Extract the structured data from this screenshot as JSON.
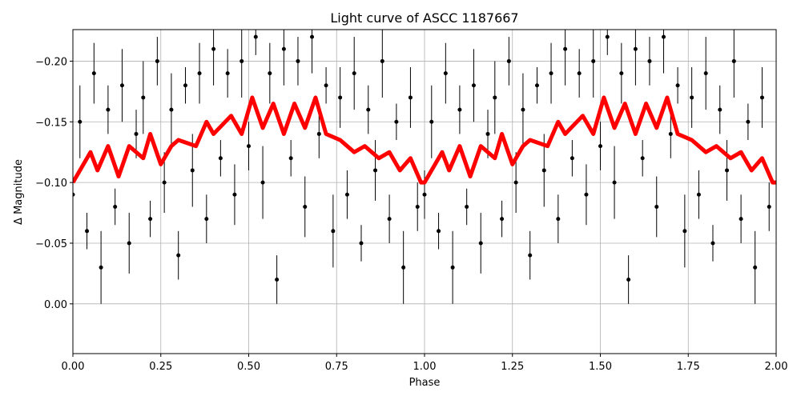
{
  "chart_data": {
    "type": "scatter",
    "title": "Light curve of ASCC 1187667",
    "xlabel": "Phase",
    "ylabel": "Δ Magnitude",
    "xlim": [
      0,
      2
    ],
    "ylim": [
      0.041,
      -0.226
    ],
    "xticks": [
      {
        "value": 0,
        "label": "0.00"
      },
      {
        "value": 0.25,
        "label": "0.25"
      },
      {
        "value": 0.5,
        "label": "0.50"
      },
      {
        "value": 0.75,
        "label": "0.75"
      },
      {
        "value": 1,
        "label": "1.00"
      },
      {
        "value": 1.25,
        "label": "1.25"
      },
      {
        "value": 1.5,
        "label": "1.50"
      },
      {
        "value": 1.75,
        "label": "1.75"
      },
      {
        "value": 2,
        "label": "2.00"
      }
    ],
    "yticks": [
      {
        "value": 0,
        "label": "0.00"
      },
      {
        "value": -0.05,
        "label": "−0.05"
      },
      {
        "value": -0.1,
        "label": "−0.10"
      },
      {
        "value": -0.15,
        "label": "−0.15"
      },
      {
        "value": -0.2,
        "label": "−0.20"
      }
    ],
    "grid": true,
    "series": [
      {
        "type": "errorbar",
        "color": "#000000",
        "x": [
          0,
          0.02,
          0.04,
          0.06,
          0.08,
          0.1,
          0.12,
          0.14,
          0.16,
          0.18,
          0.2,
          0.22,
          0.24,
          0.26,
          0.28,
          0.3,
          0.32,
          0.34,
          0.36,
          0.38,
          0.4,
          0.42,
          0.44,
          0.46,
          0.48,
          0.5,
          0.52,
          0.54,
          0.56,
          0.58,
          0.6,
          0.62,
          0.64,
          0.66,
          0.68,
          0.7,
          0.72,
          0.74,
          0.76,
          0.78,
          0.8,
          0.82,
          0.84,
          0.86,
          0.88,
          0.9,
          0.92,
          0.94,
          0.96,
          0.98,
          1,
          1.02,
          1.04,
          1.06,
          1.08,
          1.1,
          1.12,
          1.14,
          1.16,
          1.18,
          1.2,
          1.22,
          1.24,
          1.26,
          1.28,
          1.3,
          1.32,
          1.34,
          1.36,
          1.38,
          1.4,
          1.42,
          1.44,
          1.46,
          1.48,
          1.5,
          1.52,
          1.54,
          1.56,
          1.58,
          1.6,
          1.62,
          1.64,
          1.66,
          1.68,
          1.7,
          1.72,
          1.74,
          1.76,
          1.78,
          1.8,
          1.82,
          1.84,
          1.86,
          1.88,
          1.9,
          1.92,
          1.94,
          1.96,
          1.98
        ],
        "values": [
          -0.09,
          -0.15,
          -0.06,
          -0.19,
          -0.03,
          -0.16,
          -0.08,
          -0.18,
          -0.05,
          -0.14,
          -0.17,
          -0.07,
          -0.2,
          -0.1,
          -0.16,
          -0.04,
          -0.18,
          -0.11,
          -0.19,
          -0.07,
          -0.21,
          -0.12,
          -0.19,
          -0.09,
          -0.2,
          -0.13,
          -0.22,
          -0.1,
          -0.19,
          -0.02,
          -0.21,
          -0.12,
          -0.2,
          -0.08,
          -0.22,
          -0.14,
          -0.18,
          -0.06,
          -0.17,
          -0.09,
          -0.19,
          -0.05,
          -0.16,
          -0.11,
          -0.2,
          -0.07,
          -0.15,
          -0.03,
          -0.17,
          -0.08,
          -0.09,
          -0.15,
          -0.06,
          -0.19,
          -0.03,
          -0.16,
          -0.08,
          -0.18,
          -0.05,
          -0.14,
          -0.17,
          -0.07,
          -0.2,
          -0.1,
          -0.16,
          -0.04,
          -0.18,
          -0.11,
          -0.19,
          -0.07,
          -0.21,
          -0.12,
          -0.19,
          -0.09,
          -0.2,
          -0.13,
          -0.22,
          -0.1,
          -0.19,
          -0.02,
          -0.21,
          -0.12,
          -0.2,
          -0.08,
          -0.22,
          -0.14,
          -0.18,
          -0.06,
          -0.17,
          -0.09,
          -0.19,
          -0.05,
          -0.16,
          -0.11,
          -0.2,
          -0.07,
          -0.15,
          -0.03,
          -0.17,
          -0.08
        ],
        "errors": [
          0.02,
          0.03,
          0.015,
          0.025,
          0.03,
          0.02,
          0.015,
          0.03,
          0.025,
          0.02,
          0.03,
          0.015,
          0.02,
          0.025,
          0.03,
          0.02,
          0.015,
          0.03,
          0.025,
          0.02,
          0.03,
          0.015,
          0.02,
          0.025,
          0.03,
          0.02,
          0.015,
          0.03,
          0.025,
          0.02,
          0.03,
          0.015,
          0.02,
          0.025,
          0.03,
          0.02,
          0.015,
          0.03,
          0.025,
          0.02,
          0.03,
          0.015,
          0.02,
          0.025,
          0.03,
          0.02,
          0.015,
          0.03,
          0.025,
          0.02,
          0.02,
          0.03,
          0.015,
          0.025,
          0.03,
          0.02,
          0.015,
          0.03,
          0.025,
          0.02,
          0.03,
          0.015,
          0.02,
          0.025,
          0.03,
          0.02,
          0.015,
          0.03,
          0.025,
          0.02,
          0.03,
          0.015,
          0.02,
          0.025,
          0.03,
          0.02,
          0.015,
          0.03,
          0.025,
          0.02,
          0.03,
          0.015,
          0.02,
          0.025,
          0.03,
          0.02,
          0.015,
          0.03,
          0.025,
          0.02,
          0.03,
          0.015,
          0.02,
          0.025,
          0.03,
          0.02,
          0.015,
          0.03,
          0.025,
          0.02
        ]
      },
      {
        "type": "line",
        "color": "#ff0000",
        "x": [
          0,
          0.05,
          0.07,
          0.1,
          0.13,
          0.16,
          0.2,
          0.22,
          0.25,
          0.28,
          0.3,
          0.35,
          0.38,
          0.4,
          0.45,
          0.48,
          0.51,
          0.54,
          0.57,
          0.6,
          0.63,
          0.66,
          0.69,
          0.72,
          0.76,
          0.8,
          0.83,
          0.87,
          0.9,
          0.93,
          0.96,
          0.99,
          1,
          1.05,
          1.07,
          1.1,
          1.13,
          1.16,
          1.2,
          1.22,
          1.25,
          1.28,
          1.3,
          1.35,
          1.38,
          1.4,
          1.45,
          1.48,
          1.51,
          1.54,
          1.57,
          1.6,
          1.63,
          1.66,
          1.69,
          1.72,
          1.76,
          1.8,
          1.83,
          1.87,
          1.9,
          1.93,
          1.96,
          1.99,
          2
        ],
        "values": [
          -0.1,
          -0.125,
          -0.11,
          -0.13,
          -0.105,
          -0.13,
          -0.12,
          -0.14,
          -0.115,
          -0.13,
          -0.135,
          -0.13,
          -0.15,
          -0.14,
          -0.155,
          -0.14,
          -0.17,
          -0.145,
          -0.165,
          -0.14,
          -0.165,
          -0.145,
          -0.17,
          -0.14,
          -0.135,
          -0.125,
          -0.13,
          -0.12,
          -0.125,
          -0.11,
          -0.12,
          -0.1,
          -0.1,
          -0.125,
          -0.11,
          -0.13,
          -0.105,
          -0.13,
          -0.12,
          -0.14,
          -0.115,
          -0.13,
          -0.135,
          -0.13,
          -0.15,
          -0.14,
          -0.155,
          -0.14,
          -0.17,
          -0.145,
          -0.165,
          -0.14,
          -0.165,
          -0.145,
          -0.17,
          -0.14,
          -0.135,
          -0.125,
          -0.13,
          -0.12,
          -0.125,
          -0.11,
          -0.12,
          -0.1,
          -0.1
        ]
      }
    ]
  }
}
